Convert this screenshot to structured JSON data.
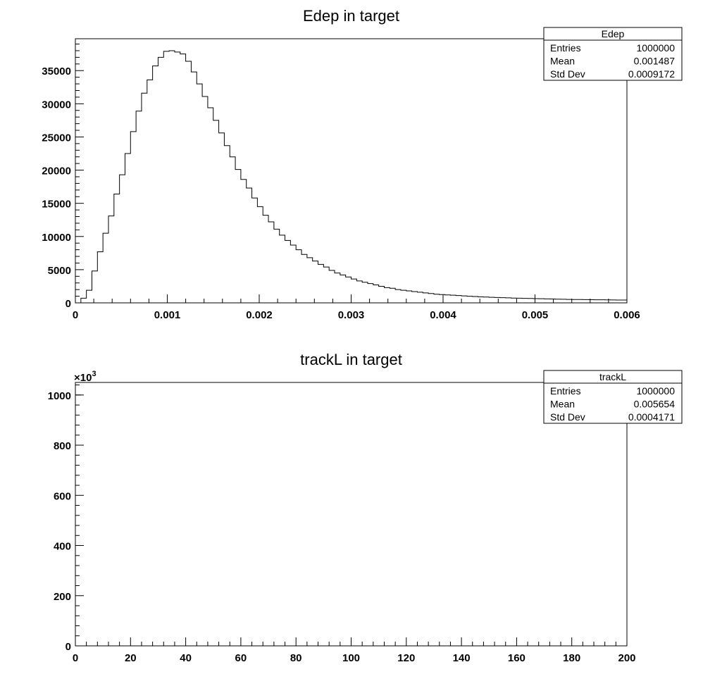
{
  "chart_data": [
    {
      "type": "histogram",
      "title": "Edep in target",
      "xlabel": "",
      "ylabel": "",
      "xlim": [
        0,
        0.006
      ],
      "ylim": [
        0,
        39800
      ],
      "x_ticks": [
        {
          "value": 0,
          "label": "0"
        },
        {
          "value": 0.001,
          "label": "0.001"
        },
        {
          "value": 0.002,
          "label": "0.002"
        },
        {
          "value": 0.003,
          "label": "0.003"
        },
        {
          "value": 0.004,
          "label": "0.004"
        },
        {
          "value": 0.005,
          "label": "0.005"
        },
        {
          "value": 0.006,
          "label": "0.006"
        }
      ],
      "y_ticks": [
        {
          "value": 0,
          "label": "0"
        },
        {
          "value": 5000,
          "label": "5000"
        },
        {
          "value": 10000,
          "label": "10000"
        },
        {
          "value": 15000,
          "label": "15000"
        },
        {
          "value": 20000,
          "label": "20000"
        },
        {
          "value": 25000,
          "label": "25000"
        },
        {
          "value": 30000,
          "label": "30000"
        },
        {
          "value": 35000,
          "label": "35000"
        }
      ],
      "bin_width": 6e-05,
      "values": [
        0,
        700,
        1900,
        4800,
        7700,
        10500,
        13100,
        16400,
        19300,
        22500,
        25800,
        28900,
        31600,
        33600,
        35700,
        37000,
        37900,
        38000,
        37800,
        37500,
        36400,
        34800,
        33000,
        31100,
        29400,
        27500,
        25600,
        23700,
        22000,
        20100,
        18600,
        17300,
        15800,
        14500,
        13200,
        12200,
        11100,
        10200,
        9400,
        8700,
        8000,
        7300,
        6800,
        6300,
        5800,
        5400,
        4900,
        4500,
        4200,
        3900,
        3600,
        3300,
        3100,
        2900,
        2700,
        2500,
        2300,
        2200,
        2000,
        1900,
        1800,
        1700,
        1600,
        1500,
        1400,
        1300,
        1250,
        1200,
        1150,
        1100,
        1050,
        1000,
        950,
        900,
        870,
        840,
        810,
        780,
        750,
        720,
        700,
        680,
        660,
        640,
        620,
        600,
        580,
        560,
        540,
        520,
        510,
        500,
        490,
        480,
        470,
        460,
        450,
        440,
        430,
        420
      ],
      "stats_box": {
        "title": "Edep",
        "rows": [
          {
            "label": "Entries",
            "value": "1000000"
          },
          {
            "label": "Mean",
            "value": "0.001487"
          },
          {
            "label": "Std Dev",
            "value": "0.0009172"
          }
        ]
      }
    },
    {
      "type": "histogram",
      "title": "trackL in target",
      "xlabel": "",
      "ylabel": "",
      "y_multiplier_label": "×10",
      "y_multiplier_exponent": "3",
      "xlim": [
        0,
        200
      ],
      "ylim": [
        0,
        1050
      ],
      "x_ticks": [
        {
          "value": 0,
          "label": "0"
        },
        {
          "value": 20,
          "label": "20"
        },
        {
          "value": 40,
          "label": "40"
        },
        {
          "value": 60,
          "label": "60"
        },
        {
          "value": 80,
          "label": "80"
        },
        {
          "value": 100,
          "label": "100"
        },
        {
          "value": 120,
          "label": "120"
        },
        {
          "value": 140,
          "label": "140"
        },
        {
          "value": 160,
          "label": "160"
        },
        {
          "value": 180,
          "label": "180"
        },
        {
          "value": 200,
          "label": "200"
        }
      ],
      "y_ticks": [
        {
          "value": 0,
          "label": "0"
        },
        {
          "value": 200,
          "label": "200"
        },
        {
          "value": 400,
          "label": "400"
        },
        {
          "value": 600,
          "label": "600"
        },
        {
          "value": 800,
          "label": "800"
        },
        {
          "value": 1000,
          "label": "1000"
        }
      ],
      "bin_width": 2,
      "values": [
        1000
      ],
      "stats_box": {
        "title": "trackL",
        "rows": [
          {
            "label": "Entries",
            "value": "1000000"
          },
          {
            "label": "Mean",
            "value": "0.005654"
          },
          {
            "label": "Std Dev",
            "value": "0.0004171"
          }
        ]
      }
    }
  ]
}
